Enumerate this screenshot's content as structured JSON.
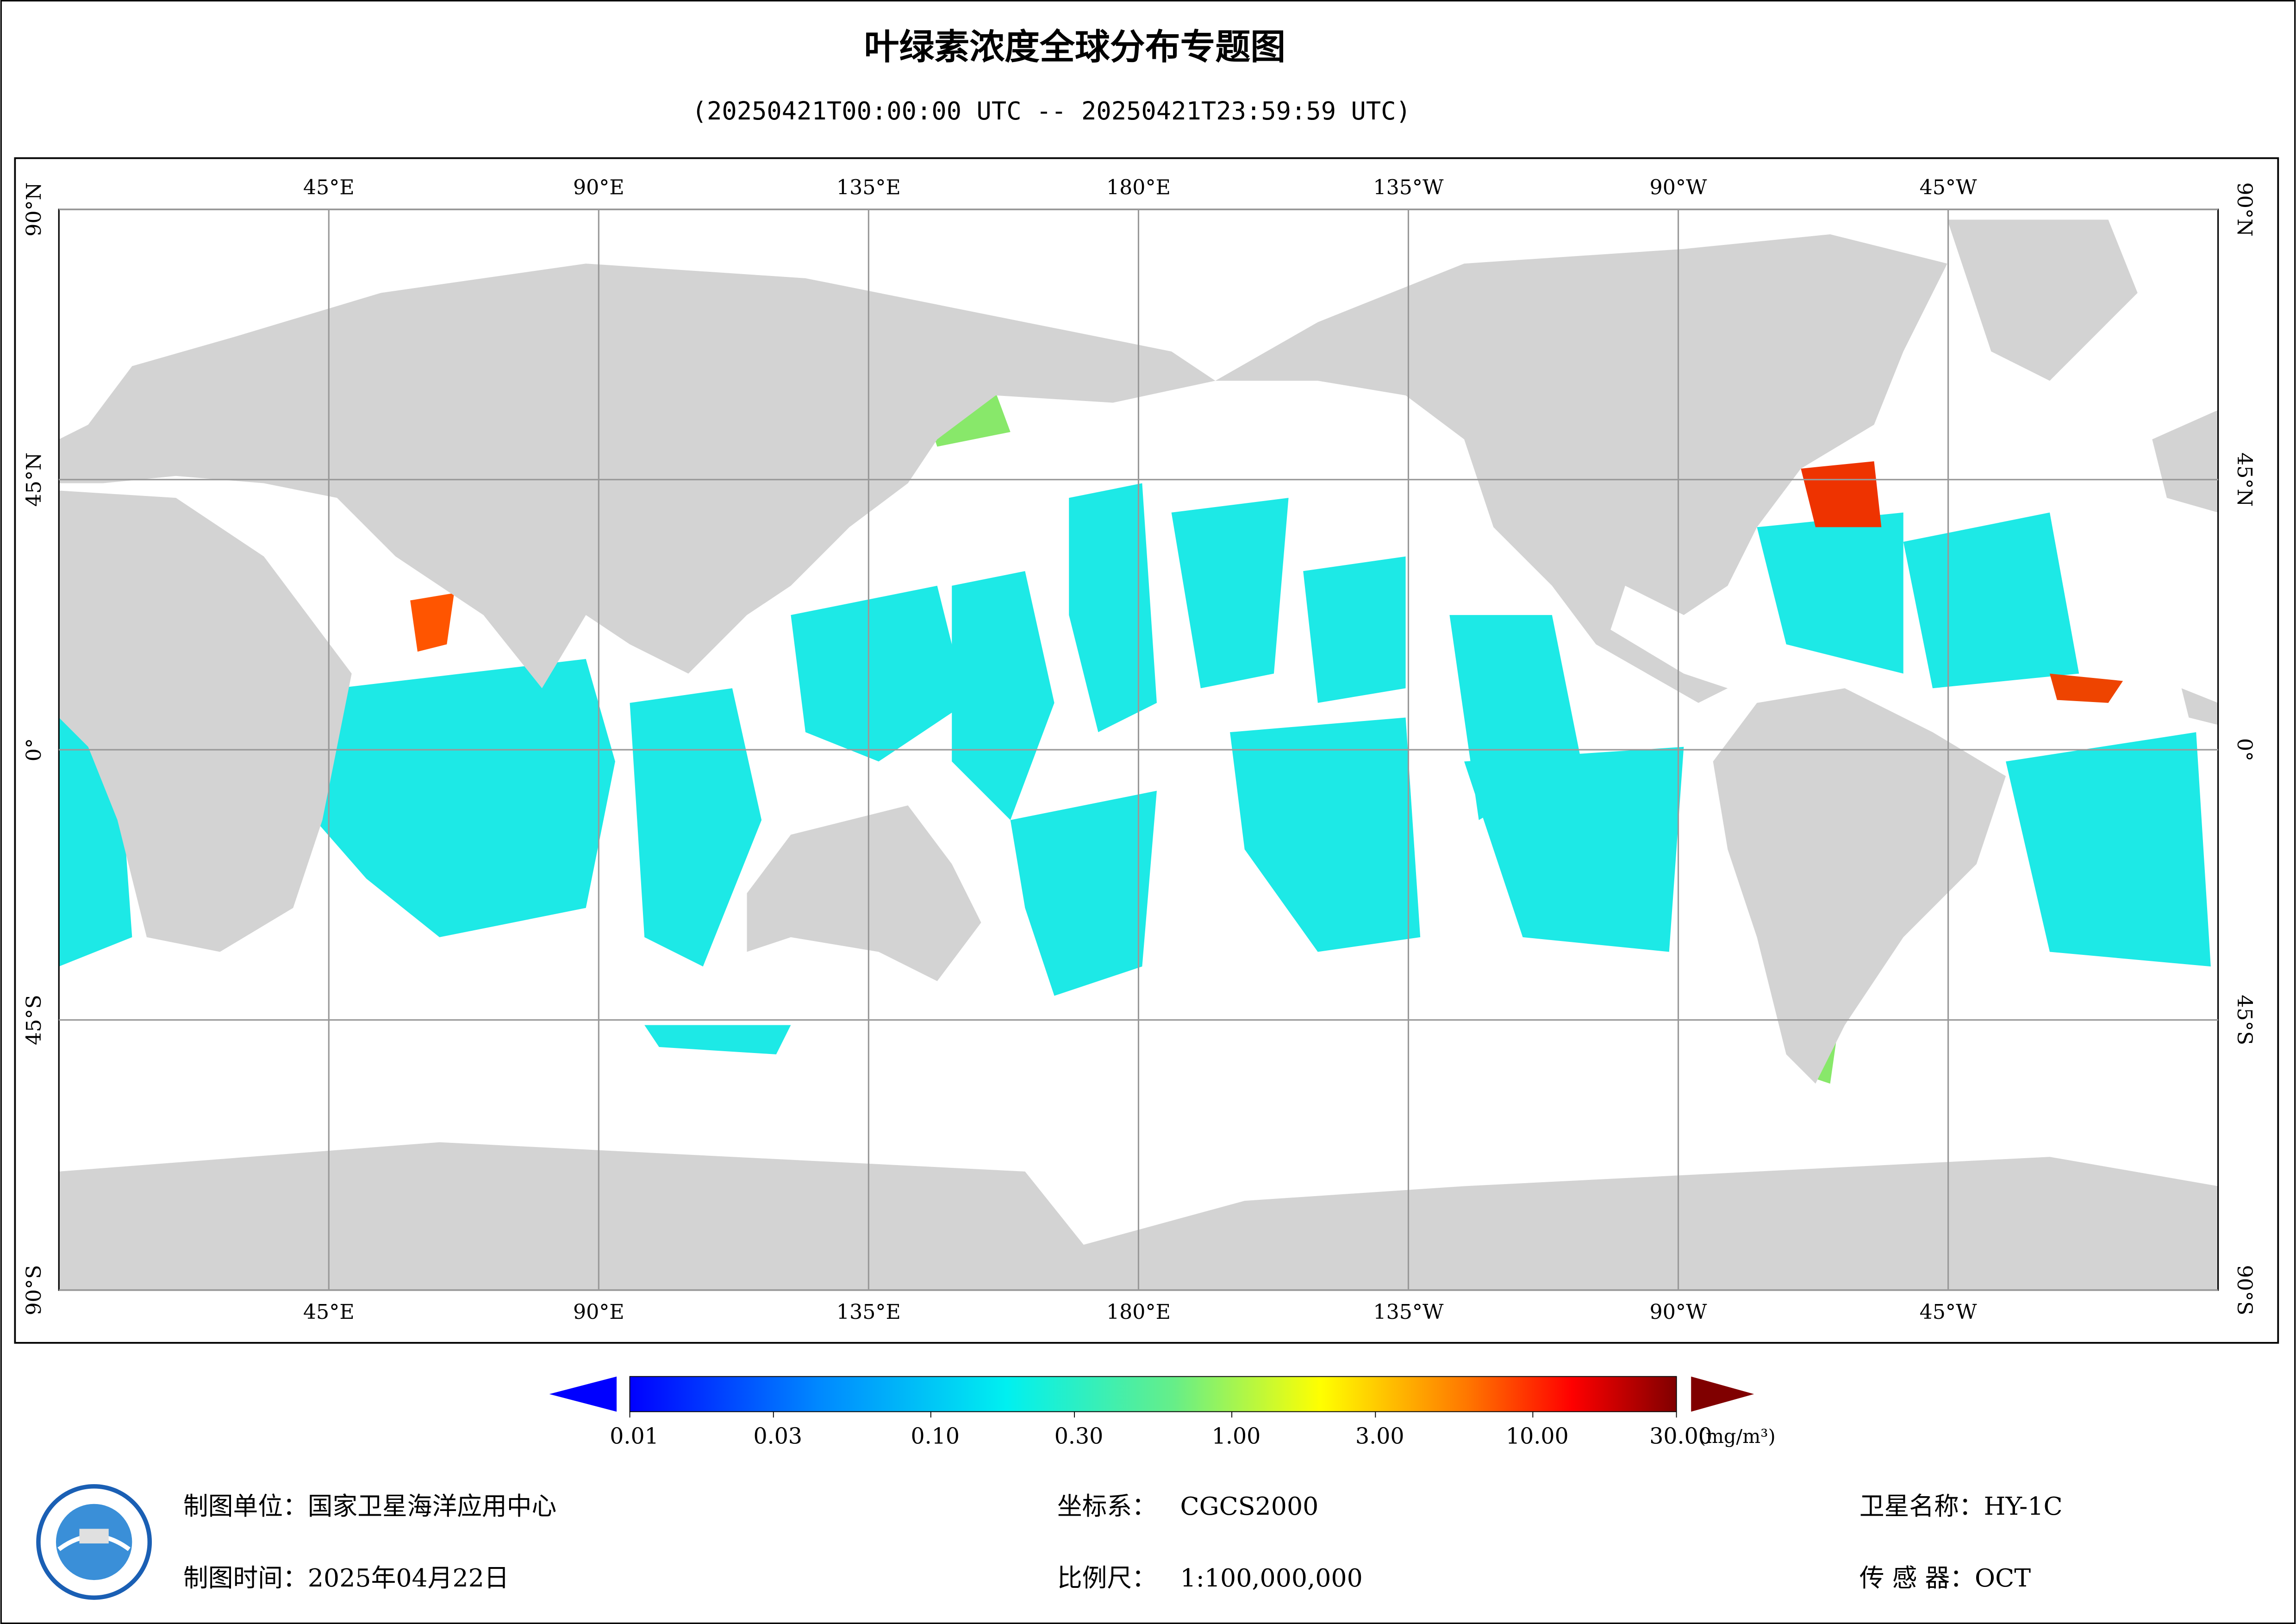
{
  "title": "叶绿素浓度全球分布专题图",
  "subtitle": "(20250421T00:00:00 UTC -- 20250421T23:59:59 UTC)",
  "map": {
    "lonlim": [
      0,
      360
    ],
    "latlim": [
      -90,
      90
    ],
    "lon_ticks": [
      {
        "value": 45,
        "label": "45°E"
      },
      {
        "value": 90,
        "label": "90°E"
      },
      {
        "value": 135,
        "label": "135°E"
      },
      {
        "value": 180,
        "label": "180°E"
      },
      {
        "value": 225,
        "label": "135°W"
      },
      {
        "value": 270,
        "label": "90°W"
      },
      {
        "value": 315,
        "label": "45°W"
      }
    ],
    "lat_ticks": [
      {
        "value": 90,
        "label": "90°N"
      },
      {
        "value": 45,
        "label": "45°N"
      },
      {
        "value": 0,
        "label": "0°"
      },
      {
        "value": -45,
        "label": "45°S"
      },
      {
        "value": -90,
        "label": "90°S"
      }
    ]
  },
  "colorbar": {
    "scale": "log",
    "range": [
      0.01,
      30
    ],
    "ticks": [
      {
        "value": 0.01,
        "label": "0.01"
      },
      {
        "value": 0.03,
        "label": "0.03"
      },
      {
        "value": 0.1,
        "label": "0.10"
      },
      {
        "value": 0.3,
        "label": "0.30"
      },
      {
        "value": 1,
        "label": "1.00"
      },
      {
        "value": 3,
        "label": "3.00"
      },
      {
        "value": 10,
        "label": "10.00"
      },
      {
        "value": 30,
        "label": "30.00"
      }
    ],
    "unit": "(mg/m³)"
  },
  "footer": {
    "producer": {
      "label": "制图单位：",
      "value": "国家卫星海洋应用中心"
    },
    "date": {
      "label": "制图时间：",
      "value": "2025年04月22日"
    },
    "crs": {
      "label": "坐标系：",
      "value": "CGCS2000"
    },
    "scale": {
      "label": "比例尺：",
      "value": "1:100,000,000"
    },
    "satellite": {
      "label": "卫星名称：",
      "value": "HY-1C"
    },
    "sensor": {
      "label": "传 感 器：",
      "value": "OCT"
    }
  }
}
